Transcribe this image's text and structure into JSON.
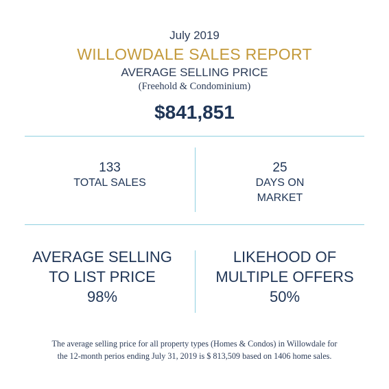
{
  "header": {
    "date": "July 2019",
    "title": "WILLOWDALE SALES REPORT",
    "subtitle": "AVERAGE SELLING PRICE",
    "note": "(Freehold & Condominium)",
    "price": "$841,851"
  },
  "stats": {
    "total_sales": {
      "value": "133",
      "label": "TOTAL SALES"
    },
    "days_on_market": {
      "value": "25",
      "label_line1": "DAYS ON",
      "label_line2": "MARKET"
    },
    "list_price": {
      "label_line1": "AVERAGE SELLING",
      "label_line2": "TO LIST PRICE",
      "value": "98%"
    },
    "multiple_offers": {
      "label_line1": "LIKEHOOD OF",
      "label_line2": "MULTIPLE OFFERS",
      "value": "50%"
    }
  },
  "footer": {
    "line1": "The average selling price for all property types (Homes & Condos) in Willowdale for",
    "line2": "the 12-month perios ending July 31, 2019 is $ 813,509 based on 1406 home sales."
  },
  "colors": {
    "title_gold": "#c3993a",
    "text_navy": "#1f3556",
    "divider": "#8fd0e0"
  }
}
